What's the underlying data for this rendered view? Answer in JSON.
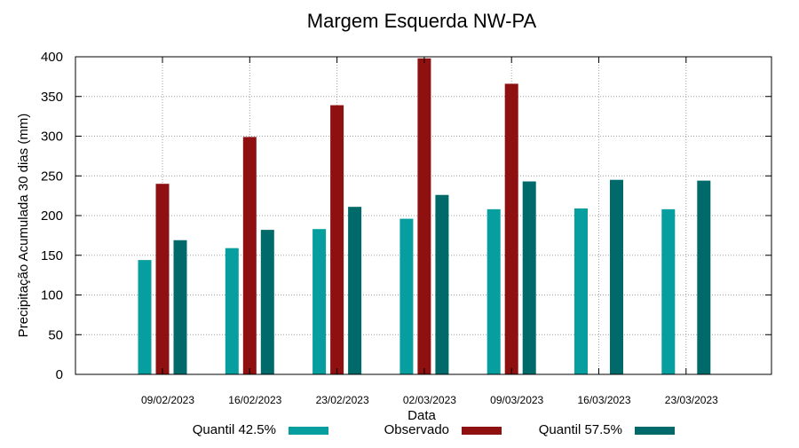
{
  "chart_data": {
    "type": "bar",
    "title": "Margem Esquerda NW-PA",
    "xlabel": "Data",
    "ylabel": "Precipitação Acumulada 30 dias (mm)",
    "ylim": [
      0,
      400
    ],
    "yticks": [
      0,
      50,
      100,
      150,
      200,
      250,
      300,
      350,
      400
    ],
    "grid": true,
    "legend_position": "bottom",
    "categories": [
      "09/02/2023",
      "16/02/2023",
      "23/02/2023",
      "02/03/2023",
      "09/03/2023",
      "16/03/2023",
      "23/03/2023"
    ],
    "series": [
      {
        "name": "Quantil 42.5%",
        "color": "#069e9e",
        "values": [
          144,
          159,
          183,
          196,
          208,
          209,
          208
        ]
      },
      {
        "name": "Observado",
        "color": "#8e1010",
        "values": [
          240,
          299,
          339,
          398,
          366,
          null,
          null
        ]
      },
      {
        "name": "Quantil 57.5%",
        "color": "#006a6a",
        "values": [
          169,
          182,
          211,
          226,
          243,
          245,
          244
        ]
      }
    ]
  }
}
